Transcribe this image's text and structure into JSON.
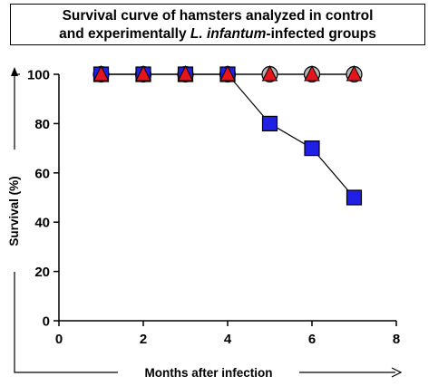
{
  "title": {
    "line1": "Survival curve of hamsters analyzed in control",
    "line2_pre": "and experimentally ",
    "line2_italic": "L. infantum",
    "line2_post": "-infected groups"
  },
  "chart_data": {
    "type": "line",
    "xlabel": "Months after infection",
    "ylabel": "Survival (%)",
    "xlim": [
      0,
      8
    ],
    "ylim": [
      0,
      100
    ],
    "xticks": [
      0,
      2,
      4,
      6,
      8
    ],
    "yticks": [
      0,
      20,
      40,
      60,
      80,
      100
    ],
    "grid": false,
    "series": [
      {
        "marker": "circle",
        "color": "#b4b4b4",
        "x": [
          1,
          2,
          3,
          4,
          5,
          6,
          7
        ],
        "y": [
          100,
          100,
          100,
          100,
          100,
          100,
          100
        ]
      },
      {
        "marker": "square",
        "color": "#1f1fe6",
        "x": [
          1,
          2,
          3,
          4,
          5,
          6,
          7
        ],
        "y": [
          100,
          100,
          100,
          100,
          80,
          70,
          50
        ]
      },
      {
        "marker": "triangle",
        "color": "#e8141b",
        "x": [
          1,
          2,
          3,
          4,
          5,
          6,
          7
        ],
        "y": [
          100,
          100,
          100,
          100,
          100,
          100,
          100
        ]
      }
    ]
  }
}
